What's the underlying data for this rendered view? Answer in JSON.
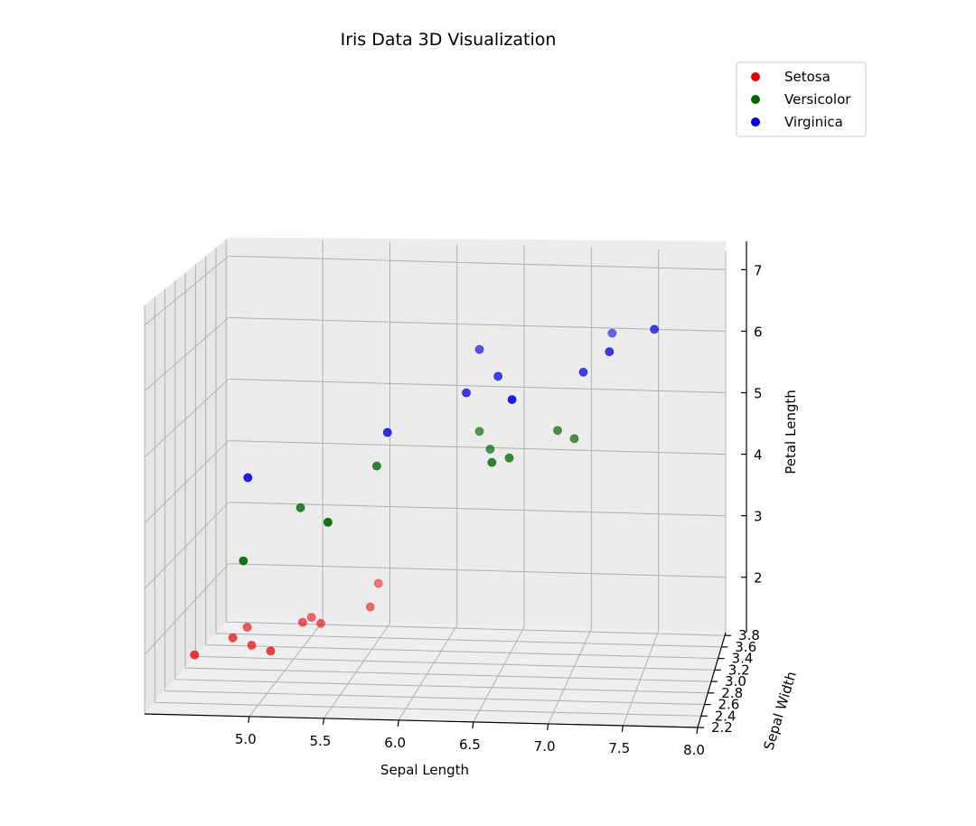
{
  "chart_data": {
    "type": "scatter",
    "projection": "3d",
    "title": "Iris Data 3D Visualization",
    "xlabel": "Sepal Length",
    "ylabel": "Sepal Width",
    "zlabel": "Petal Length",
    "x_ticks": [
      "5.0",
      "5.5",
      "6.0",
      "6.5",
      "7.0",
      "7.5",
      "8.0"
    ],
    "y_ticks": [
      "2.2",
      "2.4",
      "2.6",
      "2.8",
      "3.0",
      "3.2",
      "3.4",
      "3.6",
      "3.8"
    ],
    "z_ticks": [
      "2",
      "3",
      "4",
      "5",
      "6",
      "7"
    ],
    "xlim": [
      4.3,
      8.0
    ],
    "ylim": [
      2.2,
      3.85
    ],
    "zlim": [
      1.1,
      7.3
    ],
    "grid": true,
    "legend_position": "top-right",
    "series": [
      {
        "name": "Setosa",
        "color": "#e60000",
        "points": [
          {
            "x": 5.1,
            "y": 3.5,
            "z": 1.4
          },
          {
            "x": 4.9,
            "y": 3.0,
            "z": 1.4
          },
          {
            "x": 4.7,
            "y": 3.2,
            "z": 1.3
          },
          {
            "x": 4.6,
            "y": 3.1,
            "z": 1.5
          },
          {
            "x": 5.0,
            "y": 3.6,
            "z": 1.4
          },
          {
            "x": 5.4,
            "y": 3.9,
            "z": 1.7
          },
          {
            "x": 4.6,
            "y": 3.4,
            "z": 1.4
          },
          {
            "x": 5.0,
            "y": 3.4,
            "z": 1.5
          },
          {
            "x": 4.4,
            "y": 2.9,
            "z": 1.4
          },
          {
            "x": 5.4,
            "y": 3.7,
            "z": 1.5
          }
        ]
      },
      {
        "name": "Versicolor",
        "color": "#006400",
        "points": [
          {
            "x": 7.0,
            "y": 3.2,
            "z": 4.7
          },
          {
            "x": 6.4,
            "y": 3.2,
            "z": 4.5
          },
          {
            "x": 6.9,
            "y": 3.1,
            "z": 4.9
          },
          {
            "x": 5.5,
            "y": 2.3,
            "z": 4.0
          },
          {
            "x": 6.5,
            "y": 2.8,
            "z": 4.6
          },
          {
            "x": 5.7,
            "y": 2.8,
            "z": 4.5
          },
          {
            "x": 6.3,
            "y": 3.3,
            "z": 4.7
          },
          {
            "x": 4.9,
            "y": 2.4,
            "z": 3.3
          },
          {
            "x": 6.6,
            "y": 2.9,
            "z": 4.6
          },
          {
            "x": 5.2,
            "y": 2.7,
            "z": 3.9
          }
        ]
      },
      {
        "name": "Virginica",
        "color": "#0000e0",
        "points": [
          {
            "x": 6.3,
            "y": 3.3,
            "z": 6.0
          },
          {
            "x": 5.8,
            "y": 2.7,
            "z": 5.1
          },
          {
            "x": 7.1,
            "y": 3.0,
            "z": 5.9
          },
          {
            "x": 6.3,
            "y": 2.9,
            "z": 5.6
          },
          {
            "x": 6.5,
            "y": 3.0,
            "z": 5.8
          },
          {
            "x": 7.6,
            "y": 3.0,
            "z": 6.6
          },
          {
            "x": 4.9,
            "y": 2.5,
            "z": 4.5
          },
          {
            "x": 7.3,
            "y": 2.9,
            "z": 6.3
          },
          {
            "x": 6.7,
            "y": 2.5,
            "z": 5.8
          },
          {
            "x": 7.2,
            "y": 3.6,
            "z": 6.1
          }
        ]
      }
    ]
  }
}
